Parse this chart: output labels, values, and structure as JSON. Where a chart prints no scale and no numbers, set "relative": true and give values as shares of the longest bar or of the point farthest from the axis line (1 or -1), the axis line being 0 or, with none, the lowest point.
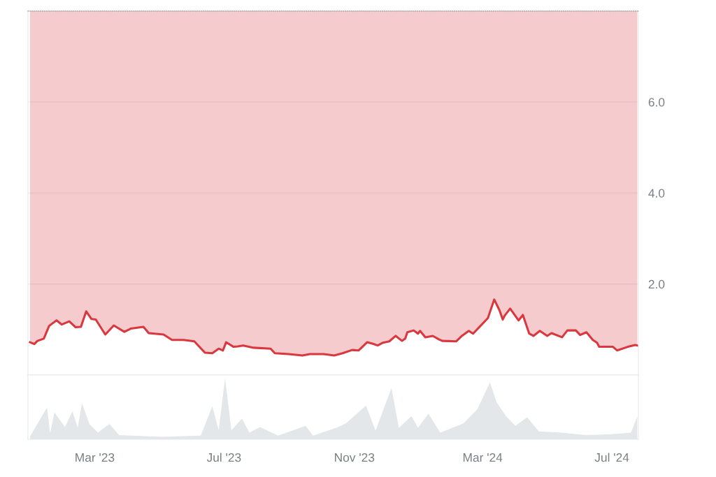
{
  "chart_data": [
    {
      "type": "line",
      "xlim": [
        "2022-12-28",
        "2024-07-26"
      ],
      "ylim": [
        0,
        8.0
      ],
      "yticks": [
        {
          "value": 2,
          "label": "2.0"
        },
        {
          "value": 4,
          "label": "4.0"
        },
        {
          "value": 6,
          "label": "6.0"
        }
      ],
      "grid": "y",
      "tick_labels": "y",
      "x": [
        "2022-12-30",
        "2023-01-03",
        "2023-01-06",
        "2023-01-12",
        "2023-01-17",
        "2023-01-24",
        "2023-01-29",
        "2023-02-05",
        "2023-02-11",
        "2023-02-16",
        "2023-02-21",
        "2023-02-26",
        "2023-03-02",
        "2023-03-11",
        "2023-03-19",
        "2023-03-29",
        "2023-04-04",
        "2023-04-16",
        "2023-04-21",
        "2023-05-05",
        "2023-05-13",
        "2023-05-24",
        "2023-06-03",
        "2023-06-13",
        "2023-06-20",
        "2023-06-26",
        "2023-06-30",
        "2023-07-03",
        "2023-07-10",
        "2023-07-14",
        "2023-07-19",
        "2023-07-29",
        "2023-08-14",
        "2023-08-18",
        "2023-08-31",
        "2023-09-13",
        "2023-09-20",
        "2023-10-03",
        "2023-10-13",
        "2023-10-21",
        "2023-10-30",
        "2023-11-05",
        "2023-11-13",
        "2023-11-18",
        "2023-11-23",
        "2023-11-28",
        "2023-12-04",
        "2023-12-10",
        "2023-12-16",
        "2023-12-19",
        "2023-12-21",
        "2023-12-27",
        "2023-12-31",
        "2024-01-02",
        "2024-01-07",
        "2024-01-14",
        "2024-01-20",
        "2024-01-23",
        "2024-02-05",
        "2024-02-10",
        "2024-02-17",
        "2024-02-21",
        "2024-02-28",
        "2024-03-06",
        "2024-03-12",
        "2024-03-17",
        "2024-03-20",
        "2024-03-22",
        "2024-03-27",
        "2024-04-04",
        "2024-04-08",
        "2024-04-14",
        "2024-04-18",
        "2024-04-24",
        "2024-05-01",
        "2024-05-05",
        "2024-05-15",
        "2024-05-20",
        "2024-05-28",
        "2024-06-01",
        "2024-06-07",
        "2024-06-13",
        "2024-06-17",
        "2024-06-19",
        "2024-07-02",
        "2024-07-06",
        "2024-07-16",
        "2024-07-23",
        "2024-07-25"
      ],
      "series": [
        {
          "color": "#d9383f",
          "values": [
            0.72,
            0.68,
            0.75,
            0.8,
            1.08,
            1.2,
            1.11,
            1.18,
            1.05,
            1.06,
            1.4,
            1.23,
            1.22,
            0.89,
            1.09,
            0.95,
            1.02,
            1.06,
            0.92,
            0.89,
            0.77,
            0.77,
            0.74,
            0.49,
            0.48,
            0.58,
            0.54,
            0.72,
            0.62,
            0.63,
            0.65,
            0.6,
            0.58,
            0.48,
            0.46,
            0.43,
            0.46,
            0.46,
            0.43,
            0.48,
            0.55,
            0.54,
            0.72,
            0.69,
            0.65,
            0.71,
            0.74,
            0.86,
            0.75,
            0.8,
            0.94,
            0.98,
            0.91,
            0.97,
            0.83,
            0.86,
            0.78,
            0.75,
            0.74,
            0.85,
            0.97,
            0.91,
            1.08,
            1.25,
            1.66,
            1.42,
            1.22,
            1.31,
            1.46,
            1.2,
            1.32,
            0.91,
            0.86,
            0.97,
            0.86,
            0.92,
            0.83,
            0.98,
            0.98,
            0.88,
            0.94,
            0.77,
            0.71,
            0.62,
            0.62,
            0.54,
            0.62,
            0.66,
            0.65
          ]
        }
      ]
    },
    {
      "type": "area",
      "relative": true,
      "xlim": [
        "2022-12-28",
        "2024-07-26"
      ],
      "tick_labels": "x",
      "xticks": [
        {
          "value": "2023-03-01",
          "label": "Mar '23"
        },
        {
          "value": "2023-07-01",
          "label": "Jul '23"
        },
        {
          "value": "2023-11-01",
          "label": "Nov '23"
        },
        {
          "value": "2024-03-01",
          "label": "Mar '24"
        },
        {
          "value": "2024-07-01",
          "label": "Jul '24"
        }
      ],
      "x": [
        "2022-12-30",
        "2023-01-15",
        "2023-01-18",
        "2023-01-22",
        "2023-02-01",
        "2023-02-08",
        "2023-02-13",
        "2023-02-17",
        "2023-02-24",
        "2023-03-04",
        "2023-03-15",
        "2023-03-24",
        "2023-05-03",
        "2023-06-09",
        "2023-06-20",
        "2023-06-26",
        "2023-07-02",
        "2023-07-08",
        "2023-07-18",
        "2023-07-25",
        "2023-08-04",
        "2023-08-21",
        "2023-09-16",
        "2023-09-23",
        "2023-10-15",
        "2023-10-24",
        "2023-11-12",
        "2023-11-21",
        "2023-12-06",
        "2023-12-13",
        "2023-12-25",
        "2023-12-31",
        "2024-01-10",
        "2024-01-21",
        "2024-02-12",
        "2024-02-25",
        "2024-03-08",
        "2024-03-14",
        "2024-03-23",
        "2024-04-01",
        "2024-04-12",
        "2024-04-23",
        "2024-05-15",
        "2024-06-06",
        "2024-06-28",
        "2024-07-19",
        "2024-07-25"
      ],
      "series": [
        {
          "color": "#e3e7ea",
          "values": [
            0.05,
            0.52,
            0.1,
            0.44,
            0.2,
            0.46,
            0.19,
            0.59,
            0.25,
            0.11,
            0.25,
            0.07,
            0.04,
            0.06,
            0.54,
            0.15,
            1.0,
            0.15,
            0.34,
            0.11,
            0.2,
            0.06,
            0.22,
            0.06,
            0.19,
            0.26,
            0.55,
            0.14,
            0.84,
            0.19,
            0.38,
            0.19,
            0.42,
            0.11,
            0.26,
            0.49,
            0.93,
            0.61,
            0.38,
            0.22,
            0.36,
            0.13,
            0.11,
            0.07,
            0.08,
            0.11,
            0.38
          ]
        }
      ]
    }
  ]
}
